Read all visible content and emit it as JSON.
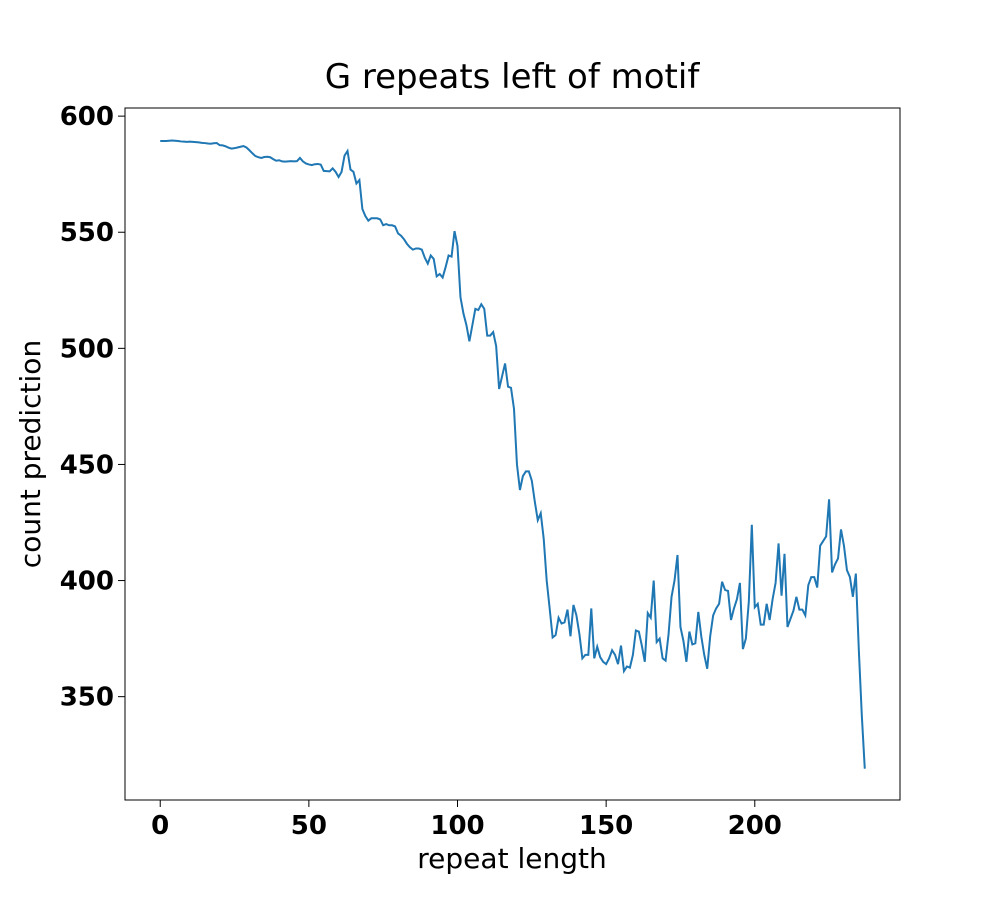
{
  "chart_data": {
    "type": "line",
    "title": "G repeats left of motif",
    "xlabel": "repeat length",
    "ylabel": "count prediction",
    "xlim": [
      -11.85,
      248.85
    ],
    "ylim": [
      305.5,
      603.5
    ],
    "xticks": [
      0,
      50,
      100,
      150,
      200
    ],
    "yticks": [
      350,
      400,
      450,
      500,
      550,
      600
    ],
    "series": [
      {
        "color": "#1f77b4",
        "values": [
          589.3,
          589.3,
          589.3,
          589.4,
          589.5,
          589.4,
          589.3,
          589.1,
          589.0,
          588.9,
          589.0,
          588.9,
          588.8,
          588.7,
          588.5,
          588.4,
          588.2,
          588.1,
          588.3,
          588.4,
          587.5,
          587.4,
          587.0,
          586.4,
          586.0,
          586.2,
          586.5,
          586.8,
          587.1,
          586.5,
          585.3,
          584.0,
          582.8,
          582.3,
          582.0,
          582.4,
          582.5,
          582.3,
          581.5,
          580.8,
          581.0,
          580.5,
          580.4,
          580.5,
          580.6,
          580.5,
          580.6,
          582.0,
          580.5,
          579.6,
          579.2,
          578.9,
          579.3,
          579.4,
          579.1,
          576.4,
          576.3,
          576.2,
          577.5,
          576.0,
          573.8,
          576,
          583,
          585,
          577,
          576,
          571,
          572.5,
          560,
          557,
          555,
          556,
          556,
          556,
          555.5,
          553,
          553.5,
          553,
          553,
          552.5,
          549.5,
          548.5,
          547,
          545,
          543.5,
          542.5,
          543,
          543,
          542.5,
          539,
          536.5,
          540,
          538.5,
          531,
          532,
          530.5,
          535,
          540,
          539.5,
          550.5,
          544,
          522,
          515,
          510,
          503,
          510,
          517,
          516.5,
          519,
          517,
          505.5,
          505.5,
          507,
          501,
          482.5,
          488,
          493.5,
          483.5,
          483,
          474,
          450,
          439,
          445,
          447,
          447,
          443,
          434,
          426,
          429,
          418,
          400,
          388,
          375.5,
          376.5,
          384,
          381.5,
          382,
          387.5,
          376,
          389.5,
          385,
          377,
          366.5,
          368,
          368,
          388,
          366.5,
          371.5,
          367,
          365,
          364,
          366.5,
          370,
          368,
          364,
          372,
          361,
          363,
          362.5,
          368,
          378.5,
          378,
          372,
          365,
          386,
          384,
          400,
          373.5,
          375,
          366.5,
          365.5,
          377,
          393,
          400,
          411,
          380,
          374,
          365,
          378,
          372.5,
          373,
          386.5,
          376,
          368,
          362,
          376,
          385,
          388,
          390,
          399.5,
          396,
          395.5,
          383,
          388,
          392,
          399,
          370.5,
          375,
          391,
          424,
          388.5,
          390,
          381,
          381,
          390,
          383,
          392,
          399,
          416,
          393.5,
          411.5,
          380,
          383.5,
          387,
          393,
          387.5,
          387.5,
          385,
          398,
          401.5,
          401.5,
          397,
          415,
          417,
          419,
          435,
          403.5,
          407,
          409.5,
          422,
          415,
          404.5,
          401.5,
          393,
          403,
          370,
          342,
          319
        ]
      }
    ]
  }
}
